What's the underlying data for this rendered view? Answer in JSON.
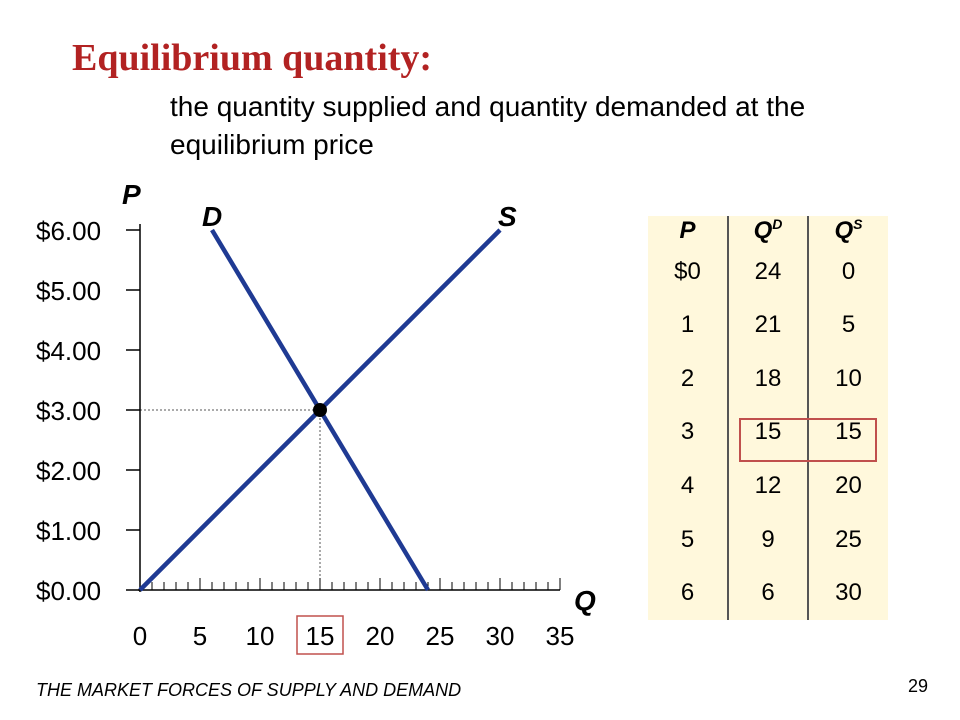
{
  "title": "Equilibrium quantity:",
  "subtitle": "the quantity supplied and quantity demanded at the equilibrium price",
  "footer": "THE MARKET FORCES OF SUPPLY AND DEMAND",
  "page_number": "29",
  "colors": {
    "title": "#b22222",
    "curve": "#1f3a93",
    "table_bg": "#fff8dc",
    "highlight": "#c0504d"
  },
  "chart_data": {
    "type": "line",
    "ylabel": "P",
    "xlabel": "Q",
    "ylim": [
      0,
      6
    ],
    "xlim": [
      0,
      35
    ],
    "y_ticks": [
      "$0.00",
      "$1.00",
      "$2.00",
      "$3.00",
      "$4.00",
      "$5.00",
      "$6.00"
    ],
    "y_tick_values": [
      0,
      1,
      2,
      3,
      4,
      5,
      6
    ],
    "x_ticks": [
      "0",
      "5",
      "10",
      "15",
      "20",
      "25",
      "30",
      "35"
    ],
    "x_tick_values": [
      0,
      5,
      10,
      15,
      20,
      25,
      30,
      35
    ],
    "x_highlight_tick": "15",
    "series": [
      {
        "name": "D",
        "x": [
          24,
          21,
          18,
          15,
          12,
          9,
          6
        ],
        "y": [
          0,
          1,
          2,
          3,
          4,
          5,
          6
        ]
      },
      {
        "name": "S",
        "x": [
          0,
          5,
          10,
          15,
          20,
          25,
          30
        ],
        "y": [
          0,
          1,
          2,
          3,
          4,
          5,
          6
        ]
      }
    ],
    "equilibrium": {
      "x": 15,
      "y": 3
    }
  },
  "schedule": {
    "headers": {
      "p": "P",
      "qd_base": "Q",
      "qd_sup": "D",
      "qs_base": "Q",
      "qs_sup": "S"
    },
    "rows": [
      {
        "p": "$0",
        "qd": "24",
        "qs": "0"
      },
      {
        "p": "1",
        "qd": "21",
        "qs": "5"
      },
      {
        "p": "2",
        "qd": "18",
        "qs": "10"
      },
      {
        "p": "3",
        "qd": "15",
        "qs": "15"
      },
      {
        "p": "4",
        "qd": "12",
        "qs": "20"
      },
      {
        "p": "5",
        "qd": "9",
        "qs": "25"
      },
      {
        "p": "6",
        "qd": "6",
        "qs": "30"
      }
    ]
  }
}
